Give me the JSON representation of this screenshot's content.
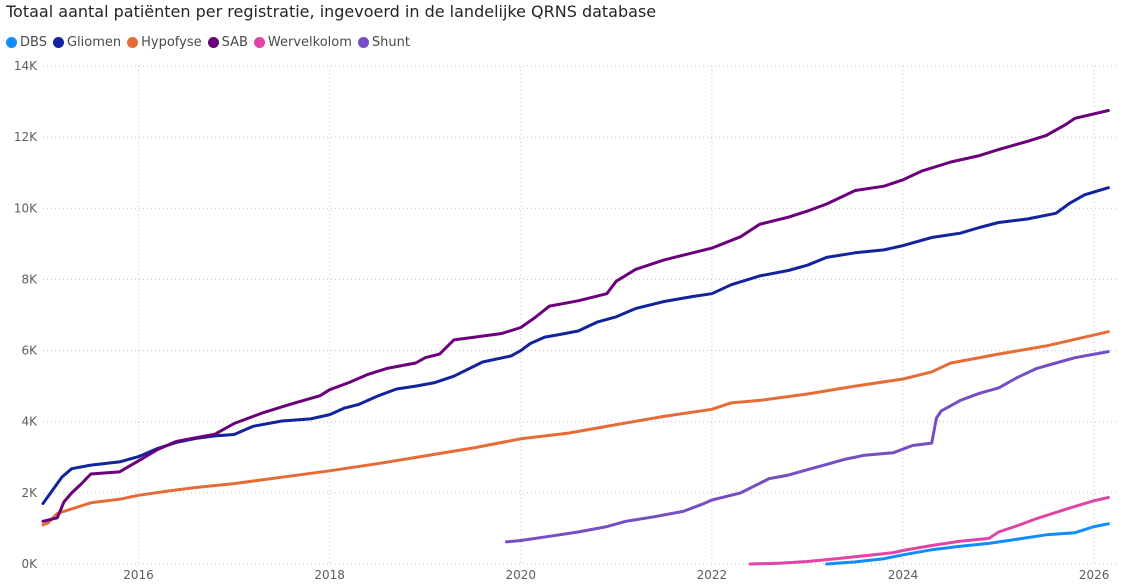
{
  "chart_data": {
    "type": "line",
    "title": "Totaal aantal patiënten per registratie, ingevoerd in de landelijke QRNS database",
    "xlabel": "",
    "ylabel": "",
    "xlim": [
      2015.0,
      2026.25
    ],
    "ylim": [
      0,
      14000
    ],
    "x_ticks": [
      2016,
      2018,
      2020,
      2022,
      2024,
      2026
    ],
    "x_tick_labels": [
      "2016",
      "2018",
      "2020",
      "2022",
      "2024",
      "2026"
    ],
    "y_ticks": [
      0,
      2000,
      4000,
      6000,
      8000,
      10000,
      12000,
      14000
    ],
    "y_tick_labels": [
      "0K",
      "2K",
      "4K",
      "6K",
      "8K",
      "10K",
      "12K",
      "14K"
    ],
    "grid": true,
    "legend_position": "top-left",
    "series": [
      {
        "name": "DBS",
        "color": "#118DFF",
        "x": [
          2023.2,
          2023.5,
          2023.8,
          2024.0,
          2024.3,
          2024.6,
          2024.9,
          2025.2,
          2025.5,
          2025.8,
          2026.0,
          2026.15
        ],
        "y": [
          0,
          60,
          150,
          260,
          400,
          500,
          580,
          700,
          820,
          880,
          1050,
          1130
        ]
      },
      {
        "name": "Gliomen",
        "color": "#12239E",
        "x": [
          2015.0,
          2015.08,
          2015.2,
          2015.3,
          2015.5,
          2015.8,
          2016.0,
          2016.2,
          2016.4,
          2016.6,
          2016.8,
          2017.0,
          2017.2,
          2017.5,
          2017.8,
          2018.0,
          2018.15,
          2018.3,
          2018.5,
          2018.7,
          2018.9,
          2019.1,
          2019.3,
          2019.6,
          2019.9,
          2020.0,
          2020.1,
          2020.25,
          2020.4,
          2020.6,
          2020.8,
          2021.0,
          2021.2,
          2021.5,
          2021.8,
          2022.0,
          2022.2,
          2022.5,
          2022.8,
          2023.0,
          2023.2,
          2023.5,
          2023.8,
          2024.0,
          2024.3,
          2024.6,
          2024.8,
          2025.0,
          2025.3,
          2025.6,
          2025.75,
          2025.9,
          2026.15
        ],
        "y": [
          1700,
          2000,
          2450,
          2680,
          2780,
          2870,
          3020,
          3250,
          3420,
          3530,
          3600,
          3640,
          3870,
          4020,
          4080,
          4200,
          4380,
          4480,
          4720,
          4920,
          5000,
          5100,
          5280,
          5680,
          5850,
          6000,
          6200,
          6380,
          6450,
          6550,
          6800,
          6950,
          7180,
          7380,
          7520,
          7600,
          7850,
          8100,
          8250,
          8400,
          8620,
          8750,
          8830,
          8950,
          9180,
          9300,
          9460,
          9600,
          9700,
          9860,
          10150,
          10380,
          10580
        ]
      },
      {
        "name": "Hypofyse",
        "color": "#E66C37",
        "x": [
          2015.0,
          2015.05,
          2015.15,
          2015.3,
          2015.5,
          2015.8,
          2016.0,
          2016.3,
          2016.6,
          2017.0,
          2017.5,
          2018.0,
          2018.5,
          2019.0,
          2019.5,
          2020.0,
          2020.5,
          2021.0,
          2021.5,
          2022.0,
          2022.2,
          2022.5,
          2023.0,
          2023.5,
          2024.0,
          2024.3,
          2024.5,
          2025.0,
          2025.5,
          2026.15
        ],
        "y": [
          1100,
          1150,
          1420,
          1550,
          1720,
          1820,
          1930,
          2050,
          2150,
          2260,
          2440,
          2620,
          2820,
          3040,
          3260,
          3520,
          3680,
          3920,
          4150,
          4350,
          4530,
          4600,
          4780,
          5000,
          5200,
          5400,
          5650,
          5900,
          6130,
          6530
        ]
      },
      {
        "name": "SAB",
        "color": "#6B007B",
        "x": [
          2015.0,
          2015.15,
          2015.22,
          2015.3,
          2015.4,
          2015.5,
          2015.8,
          2016.0,
          2016.2,
          2016.4,
          2016.6,
          2016.8,
          2017.0,
          2017.3,
          2017.6,
          2017.9,
          2018.0,
          2018.2,
          2018.4,
          2018.6,
          2018.9,
          2019.0,
          2019.15,
          2019.3,
          2019.5,
          2019.8,
          2020.0,
          2020.15,
          2020.3,
          2020.6,
          2020.9,
          2021.0,
          2021.2,
          2021.5,
          2021.8,
          2022.0,
          2022.3,
          2022.5,
          2022.8,
          2023.0,
          2023.2,
          2023.5,
          2023.8,
          2024.0,
          2024.2,
          2024.5,
          2024.8,
          2025.0,
          2025.3,
          2025.5,
          2025.7,
          2025.8,
          2026.15
        ],
        "y": [
          1200,
          1300,
          1750,
          2000,
          2250,
          2530,
          2590,
          2900,
          3220,
          3450,
          3550,
          3650,
          3950,
          4250,
          4500,
          4730,
          4900,
          5100,
          5330,
          5500,
          5650,
          5800,
          5900,
          6300,
          6370,
          6480,
          6650,
          6930,
          7250,
          7400,
          7600,
          7950,
          8280,
          8550,
          8750,
          8880,
          9200,
          9550,
          9750,
          9920,
          10120,
          10500,
          10620,
          10800,
          11050,
          11300,
          11480,
          11650,
          11880,
          12050,
          12350,
          12530,
          12750
        ]
      },
      {
        "name": "Wervelkolom",
        "color": "#E044A7",
        "x": [
          2022.4,
          2022.7,
          2023.0,
          2023.3,
          2023.6,
          2023.9,
          2024.0,
          2024.3,
          2024.6,
          2024.9,
          2025.0,
          2025.2,
          2025.4,
          2025.6,
          2025.8,
          2026.0,
          2026.15
        ],
        "y": [
          0,
          20,
          70,
          150,
          230,
          320,
          380,
          520,
          640,
          720,
          900,
          1080,
          1280,
          1450,
          1620,
          1780,
          1870
        ]
      },
      {
        "name": "Shunt",
        "color": "#744EC2",
        "x": [
          2019.85,
          2020.0,
          2020.3,
          2020.6,
          2020.9,
          2021.1,
          2021.4,
          2021.7,
          2021.9,
          2022.0,
          2022.3,
          2022.6,
          2022.8,
          2023.0,
          2023.2,
          2023.4,
          2023.6,
          2023.9,
          2024.1,
          2024.3,
          2024.35,
          2024.4,
          2024.6,
          2024.8,
          2025.0,
          2025.2,
          2025.4,
          2025.6,
          2025.8,
          2026.15
        ],
        "y": [
          620,
          660,
          780,
          900,
          1050,
          1200,
          1330,
          1480,
          1680,
          1800,
          2000,
          2400,
          2500,
          2650,
          2800,
          2950,
          3060,
          3130,
          3330,
          3400,
          4100,
          4300,
          4600,
          4800,
          4950,
          5250,
          5500,
          5650,
          5800,
          5970
        ]
      }
    ]
  }
}
